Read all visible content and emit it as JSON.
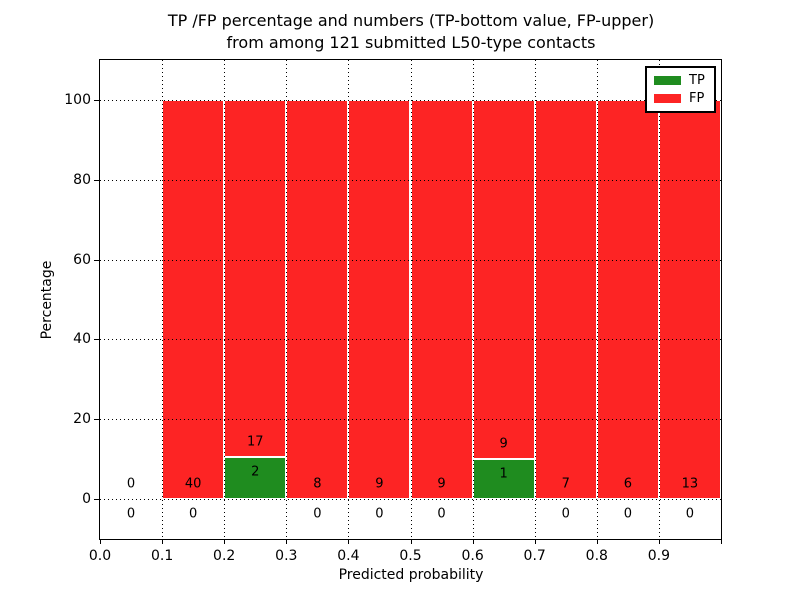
{
  "figure": {
    "background": "#ffffff"
  },
  "chart_data": {
    "type": "bar",
    "stacked": true,
    "title_line1": "TP /FP percentage and numbers (TP-bottom value, FP-upper)",
    "title_line2": "from among 121 submitted L50-type contacts",
    "xlabel": "Predicted probability",
    "ylabel": "Percentage",
    "total_submitted": 121,
    "xlim": [
      0.0,
      1.0
    ],
    "ylim": [
      -10,
      110
    ],
    "grid": "dotted",
    "legend_position": "upper-right",
    "x_tick_labels": [
      "0.0",
      "0.1",
      "0.2",
      "0.3",
      "0.4",
      "0.5",
      "0.6",
      "0.7",
      "0.8",
      "0.9"
    ],
    "y_tick_values": [
      0,
      20,
      40,
      60,
      80,
      100
    ],
    "colors": {
      "tp": "#1f8c1f",
      "fp": "#fd2424"
    },
    "legend": [
      {
        "label": "TP",
        "color": "#1f8c1f"
      },
      {
        "label": "FP",
        "color": "#fd2424"
      }
    ],
    "bins": [
      {
        "range": [
          0.0,
          0.1
        ],
        "tp_count": 0,
        "fp_count": 0,
        "tp_pct": 0,
        "fp_pct": 0
      },
      {
        "range": [
          0.1,
          0.2
        ],
        "tp_count": 0,
        "fp_count": 40,
        "tp_pct": 0,
        "fp_pct": 100
      },
      {
        "range": [
          0.2,
          0.3
        ],
        "tp_count": 2,
        "fp_count": 17,
        "tp_pct": 10.53,
        "fp_pct": 89.47
      },
      {
        "range": [
          0.3,
          0.4
        ],
        "tp_count": 0,
        "fp_count": 8,
        "tp_pct": 0,
        "fp_pct": 100
      },
      {
        "range": [
          0.4,
          0.5
        ],
        "tp_count": 0,
        "fp_count": 9,
        "tp_pct": 0,
        "fp_pct": 100
      },
      {
        "range": [
          0.5,
          0.6
        ],
        "tp_count": 0,
        "fp_count": 9,
        "tp_pct": 0,
        "fp_pct": 100
      },
      {
        "range": [
          0.6,
          0.7
        ],
        "tp_count": 1,
        "fp_count": 9,
        "tp_pct": 10.0,
        "fp_pct": 90.0
      },
      {
        "range": [
          0.7,
          0.8
        ],
        "tp_count": 0,
        "fp_count": 7,
        "tp_pct": 0,
        "fp_pct": 100
      },
      {
        "range": [
          0.8,
          0.9
        ],
        "tp_count": 0,
        "fp_count": 6,
        "tp_pct": 0,
        "fp_pct": 100
      },
      {
        "range": [
          0.9,
          1.0
        ],
        "tp_count": 0,
        "fp_count": 13,
        "tp_pct": 0,
        "fp_pct": 100
      }
    ]
  }
}
